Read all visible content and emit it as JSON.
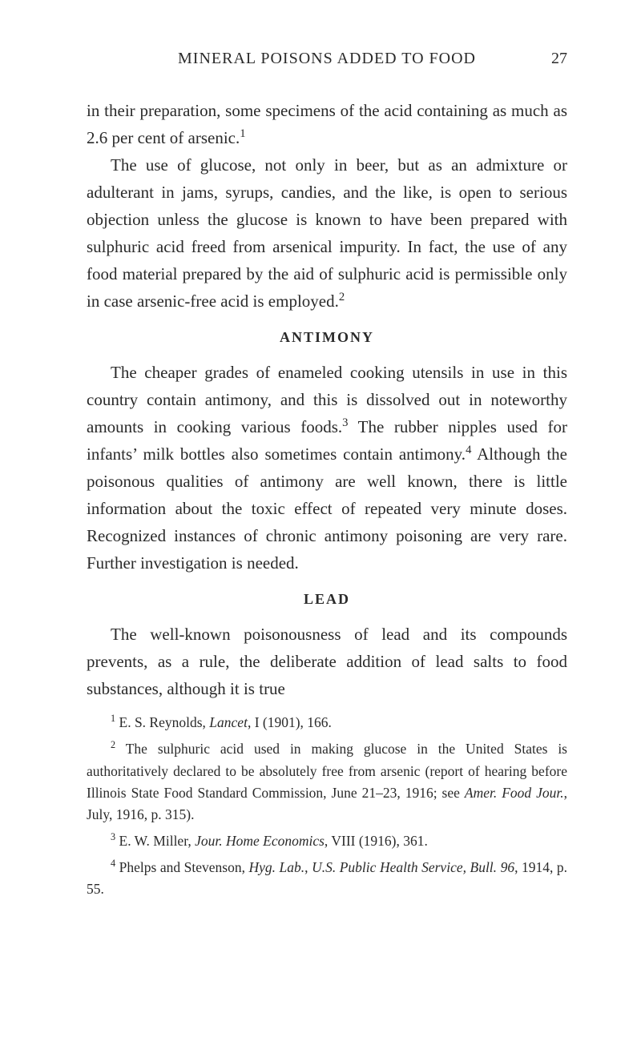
{
  "header": {
    "running_title": "MINERAL POISONS ADDED TO FOOD",
    "page_number": "27"
  },
  "paragraphs": {
    "p1": "in their preparation, some specimens of the acid con­taining as much as 2.6 per cent of arsenic.",
    "p1_sup": "1",
    "p2a": "The use of glucose, not only in beer, but as an admix­ture or adulterant in jams, syrups, candies, and the like, is open to serious objection unless the glucose is known to have been prepared with sulphuric acid freed from arsenical impurity. In fact, the use of any food material prepared by the aid of sulphuric acid is per­missible only in case arsenic-free acid is employed.",
    "p2_sup": "2"
  },
  "section_antimony": {
    "heading": "ANTIMONY",
    "p1a": "The cheaper grades of enameled cooking utensils in use in this country contain antimony, and this is dissolved out in noteworthy amounts in cooking various foods.",
    "p1_sup1": "3",
    "p1b": " The rubber nipples used for infants’ milk bottles also sometimes contain antimony.",
    "p1_sup2": "4",
    "p1c": " Although the poisonous qualities of antimony are well known, there is little information about the toxic effect of repeated very minute doses. Recognized instances of chronic antimony poisoning are very rare. Further in­vestigation is needed."
  },
  "section_lead": {
    "heading": "LEAD",
    "p1": "The well-known poisonousness of lead and its compounds prevents, as a rule, the deliberate addition of lead salts to food substances, although it is true"
  },
  "footnotes": {
    "f1_sup": "1",
    "f1a": " E. S. Reynolds, ",
    "f1_em": "Lancet",
    "f1b": ", I (1901), 166.",
    "f2_sup": "2",
    "f2a": " The sulphuric acid used in making glucose in the United States is authoritatively declared to be absolutely free from arsenic (report of hearing before Illinois State Food Standard Commission, June 21–23, 1916; see ",
    "f2_em": "Amer. Food Jour.",
    "f2b": ", July, 1916, p. 315).",
    "f3_sup": "3",
    "f3a": " E. W. Miller, ",
    "f3_em": "Jour. Home Economics",
    "f3b": ", VIII (1916), 361.",
    "f4_sup": "4",
    "f4a": " Phelps and Stevenson, ",
    "f4_em1": "Hyg. Lab.",
    "f4b": ", ",
    "f4_em2": "U.S. Public Health Service, Bull. 96",
    "f4c": ", 1914, p. 55."
  }
}
